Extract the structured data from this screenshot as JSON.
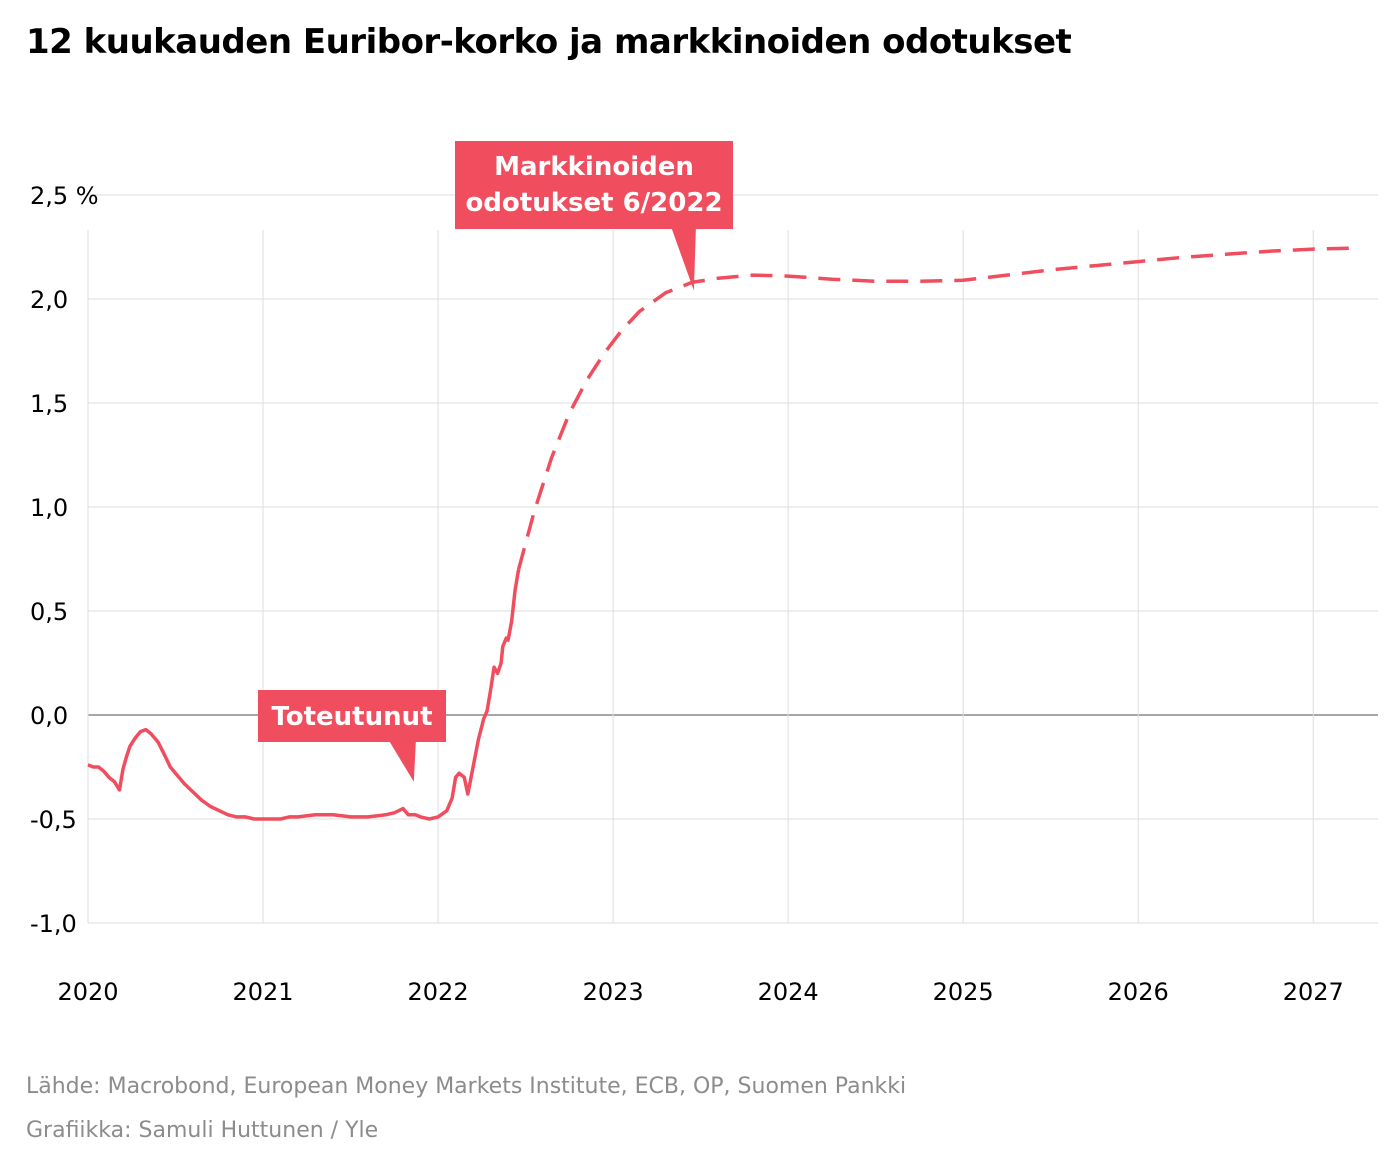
{
  "title": "12 kuukauden Euribor-korko ja markkinoiden odotukset",
  "source": "Lähde: Macrobond, European Money Markets Institute, ECB, OP, Suomen Pankki",
  "credit": "Grafiikka: Samuli Huttunen / Yle",
  "colors": {
    "series": "#f04d5e",
    "grid": "#dddddd",
    "zero": "#888888",
    "source_text": "#8c8c8c"
  },
  "annotations": {
    "actual": {
      "label": "Toteutunut",
      "points_to": {
        "x": 2021.85,
        "y": -0.35
      }
    },
    "expected": {
      "lines": [
        "Markkinoiden",
        "odotukset 6/2022"
      ],
      "points_to": {
        "x": 2023.45,
        "y": 2.05
      }
    }
  },
  "chart_data": {
    "type": "line",
    "title": "12 kuukauden Euribor-korko ja markkinoiden odotukset",
    "xlabel": "",
    "ylabel": "",
    "ylim": [
      -1.0,
      2.5
    ],
    "xlim": [
      2020.0,
      2027.37
    ],
    "grid": true,
    "y_unit": "%",
    "yticks": [
      {
        "value": -1.0,
        "label": "-1,0"
      },
      {
        "value": -0.5,
        "label": "-0,5"
      },
      {
        "value": 0.0,
        "label": "0,0"
      },
      {
        "value": 0.5,
        "label": "0,5"
      },
      {
        "value": 1.0,
        "label": "1,0"
      },
      {
        "value": 1.5,
        "label": "1,5"
      },
      {
        "value": 2.0,
        "label": "2,0"
      },
      {
        "value": 2.5,
        "label": "2,5 %"
      }
    ],
    "xticks": [
      {
        "value": 2020,
        "label": "2020"
      },
      {
        "value": 2021,
        "label": "2021"
      },
      {
        "value": 2022,
        "label": "2022"
      },
      {
        "value": 2023,
        "label": "2023"
      },
      {
        "value": 2024,
        "label": "2024"
      },
      {
        "value": 2025,
        "label": "2025"
      },
      {
        "value": 2026,
        "label": "2026"
      },
      {
        "value": 2027,
        "label": "2027"
      }
    ],
    "series": [
      {
        "name": "Toteutunut",
        "style": "solid",
        "x": [
          2020.0,
          2020.03,
          2020.06,
          2020.09,
          2020.12,
          2020.15,
          2020.18,
          2020.2,
          2020.22,
          2020.24,
          2020.27,
          2020.3,
          2020.33,
          2020.36,
          2020.4,
          2020.43,
          2020.47,
          2020.5,
          2020.55,
          2020.6,
          2020.65,
          2020.7,
          2020.75,
          2020.8,
          2020.85,
          2020.9,
          2020.95,
          2021.0,
          2021.05,
          2021.1,
          2021.15,
          2021.2,
          2021.3,
          2021.4,
          2021.5,
          2021.6,
          2021.7,
          2021.75,
          2021.8,
          2021.83,
          2021.87,
          2021.9,
          2021.95,
          2022.0,
          2022.05,
          2022.08,
          2022.1,
          2022.12,
          2022.15,
          2022.17,
          2022.2,
          2022.23,
          2022.26,
          2022.28,
          2022.3,
          2022.32,
          2022.34,
          2022.36,
          2022.37,
          2022.38,
          2022.39,
          2022.4,
          2022.42,
          2022.44,
          2022.46
        ],
        "y": [
          -0.24,
          -0.25,
          -0.25,
          -0.27,
          -0.3,
          -0.32,
          -0.36,
          -0.26,
          -0.2,
          -0.15,
          -0.11,
          -0.08,
          -0.07,
          -0.09,
          -0.13,
          -0.18,
          -0.25,
          -0.28,
          -0.33,
          -0.37,
          -0.41,
          -0.44,
          -0.46,
          -0.48,
          -0.49,
          -0.49,
          -0.5,
          -0.5,
          -0.5,
          -0.5,
          -0.49,
          -0.49,
          -0.48,
          -0.48,
          -0.49,
          -0.49,
          -0.48,
          -0.47,
          -0.45,
          -0.48,
          -0.48,
          -0.49,
          -0.5,
          -0.49,
          -0.46,
          -0.4,
          -0.3,
          -0.28,
          -0.3,
          -0.38,
          -0.25,
          -0.12,
          -0.02,
          0.02,
          0.12,
          0.23,
          0.2,
          0.25,
          0.33,
          0.35,
          0.37,
          0.36,
          0.45,
          0.6,
          0.7
        ]
      },
      {
        "name": "Markkinoiden odotukset 6/2022",
        "style": "dashed",
        "x": [
          2022.46,
          2022.55,
          2022.65,
          2022.75,
          2022.85,
          2022.95,
          2023.05,
          2023.15,
          2023.3,
          2023.45,
          2023.6,
          2023.8,
          2024.0,
          2024.25,
          2024.5,
          2024.75,
          2025.0,
          2025.25,
          2025.5,
          2025.75,
          2026.0,
          2026.25,
          2026.5,
          2026.75,
          2027.0,
          2027.25
        ],
        "y": [
          0.7,
          0.98,
          1.24,
          1.45,
          1.61,
          1.74,
          1.85,
          1.94,
          2.03,
          2.08,
          2.1,
          2.115,
          2.11,
          2.095,
          2.085,
          2.085,
          2.09,
          2.115,
          2.14,
          2.16,
          2.18,
          2.2,
          2.215,
          2.23,
          2.24,
          2.245
        ]
      }
    ]
  }
}
